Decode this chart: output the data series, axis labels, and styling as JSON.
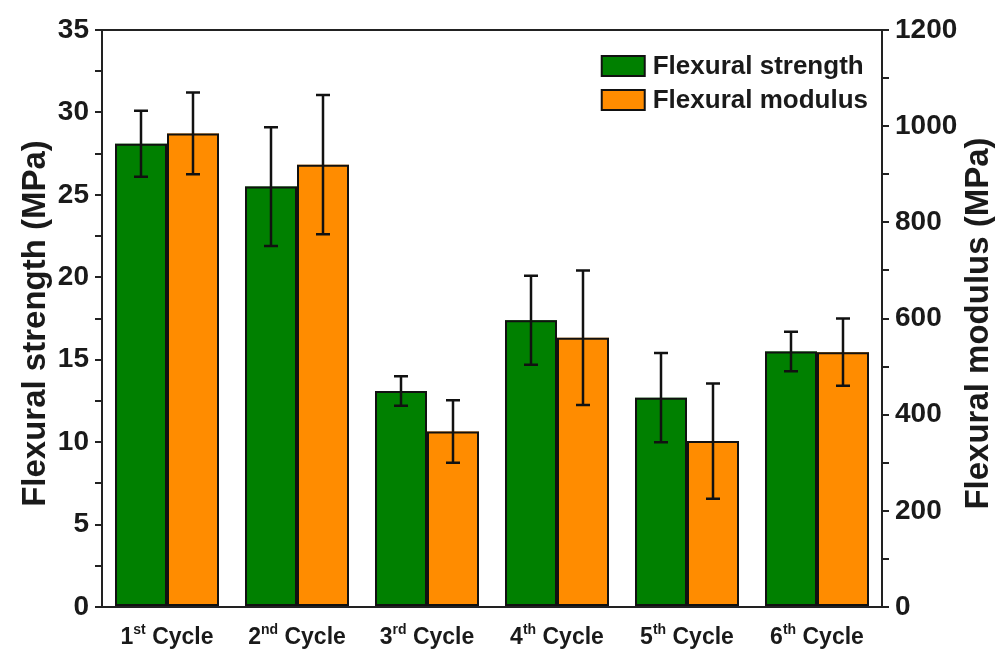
{
  "chart_data": {
    "type": "bar",
    "categories": [
      "1$^{st}$ Cycle",
      "2$^{nd}$ Cycle",
      "3$^{rd}$ Cycle",
      "4$^{th}$ Cycle",
      "5$^{th}$ Cycle",
      "6$^{th}$ Cycle"
    ],
    "ylabel": "Flexural strength (MPa)",
    "y2label": "Flexural modulus (MPa)",
    "series": [
      {
        "name": "Flexural strength",
        "color": "#008000",
        "values": [
          28.1,
          25.5,
          13.1,
          17.4,
          12.7,
          15.5
        ],
        "errors": [
          2.0,
          3.6,
          0.9,
          2.7,
          2.7,
          1.2
        ]
      },
      {
        "name": "Flexural modulus",
        "color": "#ff8c00",
        "axis": "y2",
        "values": [
          985,
          920,
          365,
          560,
          345,
          530
        ],
        "errors": [
          85,
          145,
          65,
          140,
          120,
          70
        ]
      }
    ],
    "ylim": [
      0,
      35
    ],
    "yticks": [
      0,
      {
        "value": 2.5,
        "label": null
      },
      5,
      {
        "value": 7.5,
        "label": null
      },
      10,
      {
        "value": 12.5,
        "label": null
      },
      15,
      {
        "value": 17.5,
        "label": null
      },
      20,
      {
        "value": 22.5,
        "label": null
      },
      25,
      {
        "value": 27.5,
        "label": null
      },
      30,
      {
        "value": 32.5,
        "label": null
      },
      35
    ],
    "y2lim": [
      0,
      1200
    ],
    "y2ticks": [
      0,
      {
        "value": 100,
        "label": null
      },
      200,
      {
        "value": 300,
        "label": null
      },
      400,
      {
        "value": 500,
        "label": null
      },
      600,
      {
        "value": 700,
        "label": null
      },
      800,
      {
        "value": 900,
        "label": null
      },
      1000,
      {
        "value": 1100,
        "label": null
      },
      1200
    ],
    "legend": "top right"
  }
}
